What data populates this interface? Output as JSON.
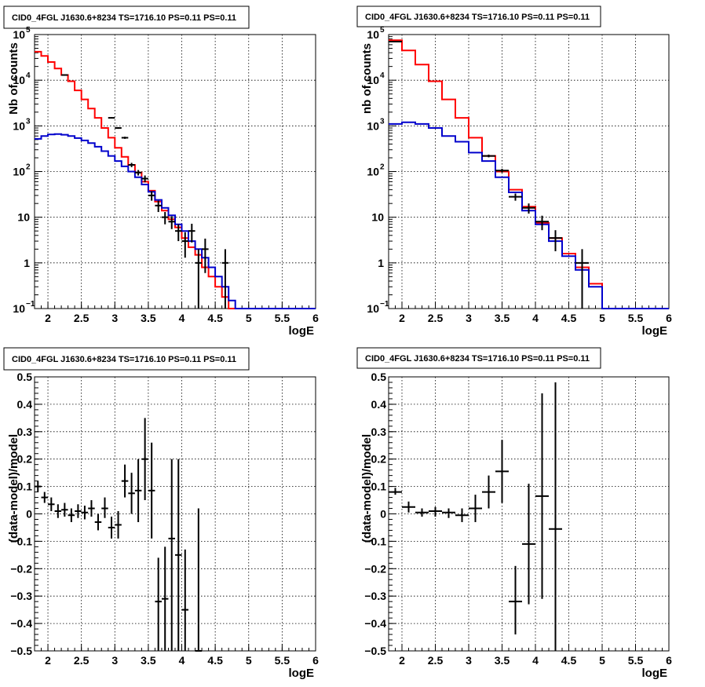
{
  "colors": {
    "data": "#000000",
    "model_total": "#ff0000",
    "model_source": "#0000cc",
    "grid": "#000000",
    "frame": "#000000"
  },
  "chart_data": [
    {
      "type": "line",
      "title": "CID0_4FGL J1630.6+8234 TS=1716.10 PS=0.11 PS=0.11",
      "xlabel": "logE",
      "ylabel": "Nb of counts",
      "xlim": [
        1.8,
        6
      ],
      "ylim": [
        0.1,
        100000
      ],
      "yscale": "log",
      "grid": true,
      "xticks": [
        "2",
        "2.5",
        "3",
        "3.5",
        "4",
        "4.5",
        "5",
        "5.5",
        "6"
      ],
      "yticks": [
        "10",
        "1",
        "10"
      ],
      "yticks_pow": [
        {
          "base": "10",
          "exp": "5"
        },
        {
          "base": "10",
          "exp": "4"
        },
        {
          "base": "10",
          "exp": "3"
        },
        {
          "base": "10",
          "exp": "2"
        },
        {
          "base": "10",
          "exp": "−1"
        }
      ],
      "bins": {
        "edges_start": 1.8,
        "width": 0.1
      },
      "series": [
        {
          "style": "step",
          "color": "#ff0000",
          "values": [
            42000,
            34000,
            25000,
            18000,
            13000,
            9500,
            6000,
            3800,
            2400,
            1500,
            900,
            550,
            330,
            210,
            140,
            95,
            60,
            38,
            22,
            14,
            9,
            6,
            3.5,
            2.2,
            1.5,
            0.8,
            0.5,
            0.3,
            0.18,
            0.1,
            0.1,
            0.1,
            0.1,
            0.1,
            0.1,
            0.1,
            0.1,
            0.1,
            0.1,
            0.1,
            0.1,
            0.1
          ]
        },
        {
          "style": "step",
          "color": "#0000cc",
          "values": [
            520,
            600,
            650,
            660,
            640,
            600,
            540,
            480,
            420,
            350,
            280,
            220,
            170,
            130,
            100,
            75,
            52,
            36,
            24,
            16,
            11,
            7,
            5,
            3,
            2,
            1.3,
            0.8,
            0.5,
            0.3,
            0.15,
            0.1,
            0.1,
            0.1,
            0.1,
            0.1,
            0.1,
            0.1,
            0.1,
            0.1,
            0.1,
            0.1,
            0.1
          ]
        },
        {
          "style": "errorbar",
          "color": "#000000",
          "points": [
            {
              "x": 2.25,
              "y": 13000,
              "lo": 12800,
              "hi": 13200
            },
            {
              "x": 2.95,
              "y": 1500,
              "lo": 1450,
              "hi": 1550
            },
            {
              "x": 3.05,
              "y": 900,
              "lo": 860,
              "hi": 940
            },
            {
              "x": 3.15,
              "y": 550,
              "lo": 520,
              "hi": 580
            },
            {
              "x": 3.25,
              "y": 140,
              "lo": 125,
              "hi": 155
            },
            {
              "x": 3.35,
              "y": 95,
              "lo": 82,
              "hi": 108
            },
            {
              "x": 3.45,
              "y": 70,
              "lo": 58,
              "hi": 82
            },
            {
              "x": 3.55,
              "y": 30,
              "lo": 23,
              "hi": 37
            },
            {
              "x": 3.65,
              "y": 18,
              "lo": 13,
              "hi": 23
            },
            {
              "x": 3.75,
              "y": 10,
              "lo": 7,
              "hi": 13
            },
            {
              "x": 3.85,
              "y": 8,
              "lo": 5.5,
              "hi": 10.5
            },
            {
              "x": 3.95,
              "y": 5,
              "lo": 3,
              "hi": 7
            },
            {
              "x": 4.05,
              "y": 3,
              "lo": 1.3,
              "hi": 4.7
            },
            {
              "x": 4.15,
              "y": 5,
              "lo": 2.8,
              "hi": 7.2
            },
            {
              "x": 4.25,
              "y": 1,
              "lo": 0.1,
              "hi": 2
            },
            {
              "x": 4.35,
              "y": 2,
              "lo": 0.6,
              "hi": 3.4
            },
            {
              "x": 4.65,
              "y": 1,
              "lo": 0.1,
              "hi": 2
            }
          ]
        }
      ]
    },
    {
      "type": "line",
      "title": "CID0_4FGL J1630.6+8234 TS=1716.10 PS=0.11 PS=0.11",
      "xlabel": "logE",
      "ylabel": "nb of counts",
      "xlim": [
        1.8,
        6
      ],
      "ylim": [
        0.1,
        100000
      ],
      "yscale": "log",
      "grid": true,
      "xticks": [
        "2",
        "2.5",
        "3",
        "3.5",
        "4",
        "4.5",
        "5",
        "5.5",
        "6"
      ],
      "yticks": [
        "10",
        "1",
        "10"
      ],
      "yticks_pow": [
        {
          "base": "10",
          "exp": "5"
        },
        {
          "base": "10",
          "exp": "4"
        },
        {
          "base": "10",
          "exp": "3"
        },
        {
          "base": "10",
          "exp": "2"
        },
        {
          "base": "10",
          "exp": "−1"
        }
      ],
      "bins": {
        "edges_start": 1.8,
        "width": 0.2
      },
      "series": [
        {
          "style": "step",
          "color": "#ff0000",
          "values": [
            75000,
            45000,
            22000,
            9500,
            3800,
            1500,
            550,
            220,
            100,
            40,
            17,
            7.5,
            3.5,
            1.6,
            0.8,
            0.35,
            0.1,
            0.1,
            0.1,
            0.1,
            0.1
          ]
        },
        {
          "style": "step",
          "color": "#0000cc",
          "values": [
            1100,
            1200,
            1100,
            900,
            600,
            450,
            260,
            170,
            75,
            35,
            14,
            7,
            3,
            1.4,
            0.7,
            0.3,
            0.1,
            0.1,
            0.1,
            0.1,
            0.1
          ]
        },
        {
          "style": "errorbar",
          "color": "#000000",
          "points": [
            {
              "x": 1.9,
              "y": 70000,
              "lo": 69000,
              "hi": 71000
            },
            {
              "x": 3.3,
              "y": 220,
              "lo": 205,
              "hi": 235
            },
            {
              "x": 3.5,
              "y": 105,
              "lo": 95,
              "hi": 115
            },
            {
              "x": 3.7,
              "y": 28,
              "lo": 23,
              "hi": 33
            },
            {
              "x": 3.9,
              "y": 16,
              "lo": 12,
              "hi": 20
            },
            {
              "x": 4.1,
              "y": 8,
              "lo": 5.2,
              "hi": 10.8
            },
            {
              "x": 4.3,
              "y": 3.5,
              "lo": 1.8,
              "hi": 5.2
            },
            {
              "x": 4.7,
              "y": 1,
              "lo": 0.1,
              "hi": 2
            }
          ]
        }
      ]
    },
    {
      "type": "scatter",
      "title": "CID0_4FGL J1630.6+8234 TS=1716.10 PS=0.11 PS=0.11",
      "xlabel": "logE",
      "ylabel": "(data-model)/model",
      "xlim": [
        1.8,
        6
      ],
      "ylim": [
        -0.5,
        0.5
      ],
      "grid": true,
      "xticks": [
        "2",
        "2.5",
        "3",
        "3.5",
        "4",
        "4.5",
        "5",
        "5.5",
        "6"
      ],
      "yticks": [
        "0.5",
        "0.4",
        "0.3",
        "0.2",
        "0.1",
        "0",
        "−0.1",
        "−0.2",
        "−0.3",
        "−0.4",
        "−0.5"
      ],
      "xerr": 0.05,
      "series": [
        {
          "style": "errorbar",
          "color": "#000000",
          "points": [
            {
              "x": 1.85,
              "y": 0.1,
              "lo": 0.08,
              "hi": 0.12
            },
            {
              "x": 1.95,
              "y": 0.06,
              "lo": 0.04,
              "hi": 0.08
            },
            {
              "x": 2.05,
              "y": 0.035,
              "lo": 0.01,
              "hi": 0.06
            },
            {
              "x": 2.15,
              "y": 0.01,
              "lo": -0.015,
              "hi": 0.035
            },
            {
              "x": 2.25,
              "y": 0.015,
              "lo": -0.01,
              "hi": 0.04
            },
            {
              "x": 2.35,
              "y": -0.005,
              "lo": -0.03,
              "hi": 0.02
            },
            {
              "x": 2.45,
              "y": 0.01,
              "lo": -0.015,
              "hi": 0.035
            },
            {
              "x": 2.55,
              "y": 0.005,
              "lo": -0.02,
              "hi": 0.03
            },
            {
              "x": 2.65,
              "y": 0.02,
              "lo": -0.01,
              "hi": 0.05
            },
            {
              "x": 2.75,
              "y": -0.03,
              "lo": -0.06,
              "hi": 0.0
            },
            {
              "x": 2.85,
              "y": 0.02,
              "lo": -0.015,
              "hi": 0.06
            },
            {
              "x": 2.95,
              "y": -0.05,
              "lo": -0.09,
              "hi": -0.01
            },
            {
              "x": 3.05,
              "y": -0.04,
              "lo": -0.09,
              "hi": 0.01
            },
            {
              "x": 3.15,
              "y": 0.12,
              "lo": 0.06,
              "hi": 0.18
            },
            {
              "x": 3.25,
              "y": 0.075,
              "lo": 0.0,
              "hi": 0.15
            },
            {
              "x": 3.35,
              "y": 0.085,
              "lo": -0.03,
              "hi": 0.2
            },
            {
              "x": 3.45,
              "y": 0.2,
              "lo": 0.05,
              "hi": 0.35
            },
            {
              "x": 3.55,
              "y": 0.085,
              "lo": -0.09,
              "hi": 0.26
            },
            {
              "x": 3.65,
              "y": -0.32,
              "lo": -0.5,
              "hi": -0.16
            },
            {
              "x": 3.75,
              "y": -0.31,
              "lo": -0.5,
              "hi": -0.12
            },
            {
              "x": 3.85,
              "y": -0.09,
              "lo": -0.5,
              "hi": 0.2
            },
            {
              "x": 3.95,
              "y": -0.15,
              "lo": -0.5,
              "hi": 0.2
            },
            {
              "x": 4.05,
              "y": -0.35,
              "lo": -0.5,
              "hi": -0.13
            },
            {
              "x": 4.25,
              "y": -0.5,
              "lo": -0.5,
              "hi": 0.02
            }
          ]
        }
      ]
    },
    {
      "type": "scatter",
      "title": "CID0_4FGL J1630.6+8234 TS=1716.10 PS=0.11 PS=0.11",
      "xlabel": "logE",
      "ylabel": "(data-model)/model",
      "xlim": [
        1.8,
        6
      ],
      "ylim": [
        -0.5,
        0.5
      ],
      "grid": true,
      "xticks": [
        "2",
        "2.5",
        "3",
        "3.5",
        "4",
        "4.5",
        "5",
        "5.5",
        "6"
      ],
      "yticks": [
        "0.5",
        "0.4",
        "0.3",
        "0.2",
        "0.1",
        "0",
        "−0.1",
        "−0.2",
        "−0.3",
        "−0.4",
        "−0.5"
      ],
      "xerr": 0.1,
      "series": [
        {
          "style": "errorbar",
          "color": "#000000",
          "points": [
            {
              "x": 1.9,
              "y": 0.08,
              "lo": 0.07,
              "hi": 0.095
            },
            {
              "x": 2.1,
              "y": 0.025,
              "lo": 0.005,
              "hi": 0.045
            },
            {
              "x": 2.3,
              "y": 0.005,
              "lo": -0.01,
              "hi": 0.02
            },
            {
              "x": 2.5,
              "y": 0.01,
              "lo": -0.01,
              "hi": 0.025
            },
            {
              "x": 2.7,
              "y": 0.005,
              "lo": -0.015,
              "hi": 0.02
            },
            {
              "x": 2.9,
              "y": -0.005,
              "lo": -0.03,
              "hi": 0.02
            },
            {
              "x": 3.1,
              "y": 0.02,
              "lo": -0.03,
              "hi": 0.07
            },
            {
              "x": 3.3,
              "y": 0.08,
              "lo": 0.02,
              "hi": 0.14
            },
            {
              "x": 3.5,
              "y": 0.155,
              "lo": 0.04,
              "hi": 0.27
            },
            {
              "x": 3.7,
              "y": -0.32,
              "lo": -0.44,
              "hi": -0.19
            },
            {
              "x": 3.9,
              "y": -0.11,
              "lo": -0.33,
              "hi": 0.11
            },
            {
              "x": 4.1,
              "y": 0.065,
              "lo": -0.31,
              "hi": 0.44
            },
            {
              "x": 4.3,
              "y": -0.055,
              "lo": -0.5,
              "hi": 0.48
            }
          ]
        }
      ]
    }
  ]
}
